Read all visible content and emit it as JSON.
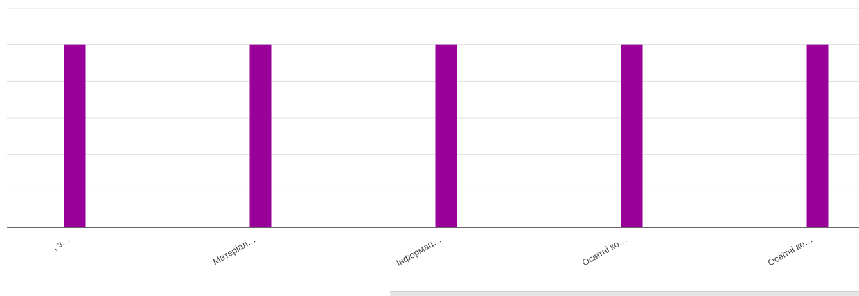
{
  "chart_data": {
    "type": "bar",
    "categories": [
      ", з…",
      "Матеріал…",
      "Інформац…",
      "Освітні ко…",
      "Освітні ко…"
    ],
    "values": [
      5,
      5,
      5,
      5,
      5
    ],
    "ylim": [
      0,
      6
    ],
    "grid": true,
    "bar_color": "#990099"
  },
  "colors": {
    "bar": "#990099",
    "grid": "#e0e0e0",
    "baseline": "#333333",
    "label": "#444444"
  }
}
